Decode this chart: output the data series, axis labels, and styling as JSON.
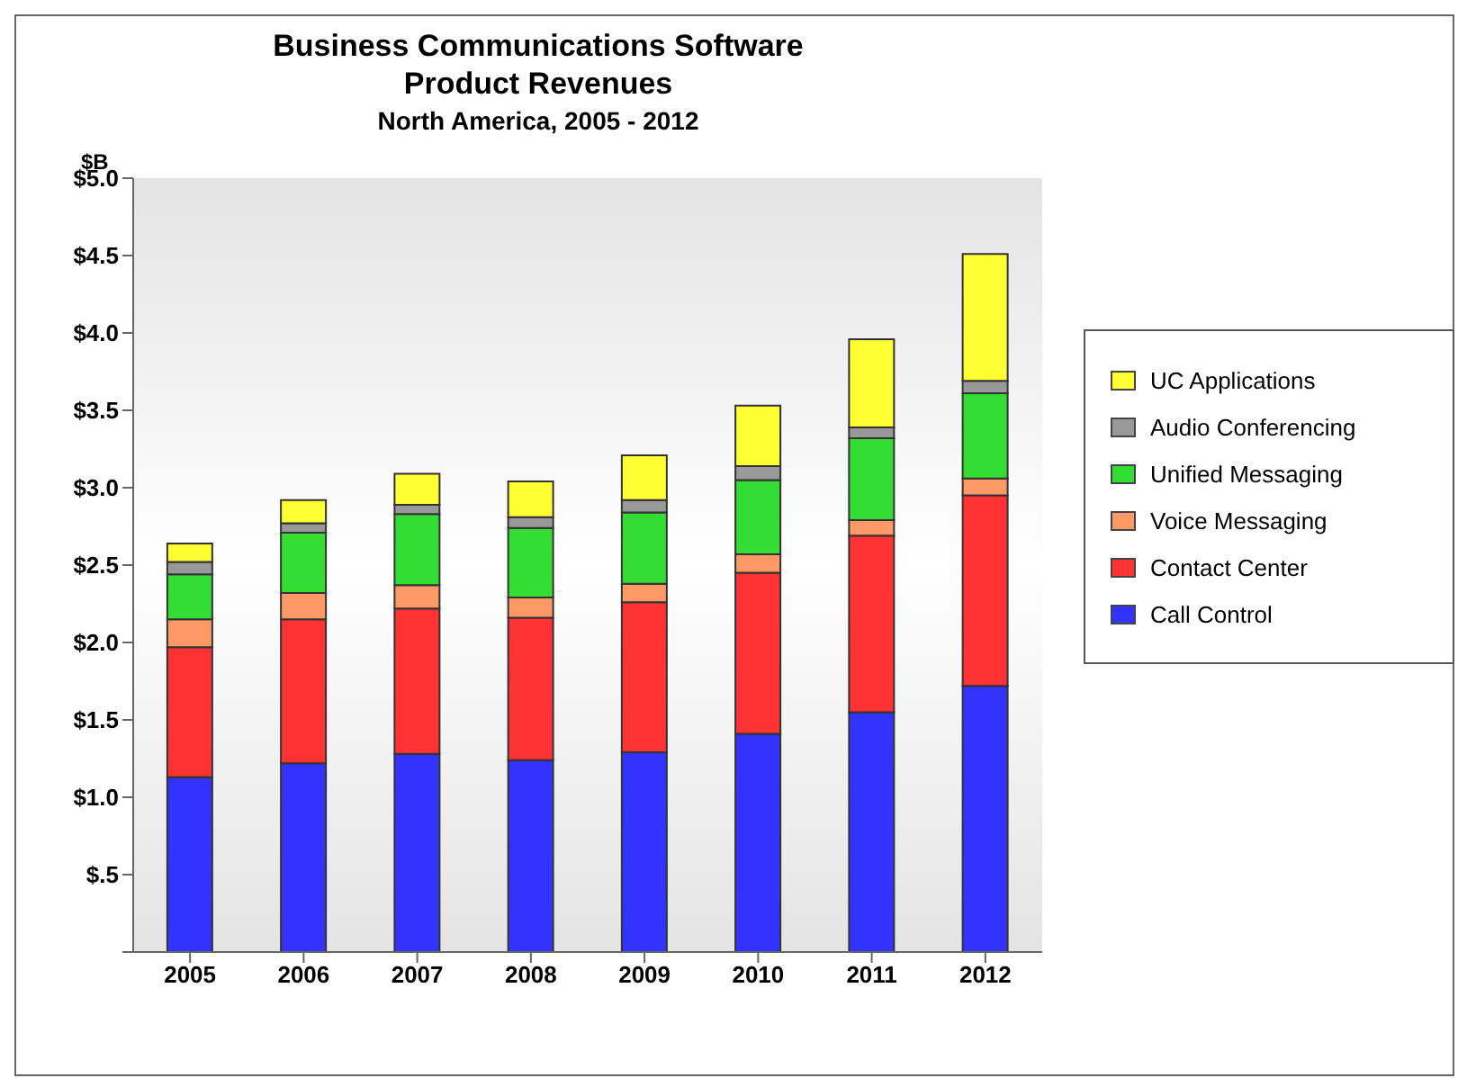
{
  "chart_data": {
    "type": "bar",
    "title": "Business Communications Software Product Revenues",
    "subtitle": "North America, 2005 - 2012",
    "ylabel": "$B",
    "categories": [
      "2005",
      "2006",
      "2007",
      "2008",
      "2009",
      "2010",
      "2011",
      "2012"
    ],
    "stacked": true,
    "legend": "right",
    "grid": false,
    "ylim": [
      0,
      5
    ],
    "yticks": [
      {
        "value": 0,
        "label": null
      },
      {
        "value": 0.5,
        "label": "$.5"
      },
      {
        "value": 1,
        "label": "$1.0"
      },
      {
        "value": 1.5,
        "label": "$1.5"
      },
      {
        "value": 2,
        "label": "$2.0"
      },
      {
        "value": 2.5,
        "label": "$2.5"
      },
      {
        "value": 3,
        "label": "$3.0"
      },
      {
        "value": 3.5,
        "label": "$3.5"
      },
      {
        "value": 4,
        "label": "$4.0"
      },
      {
        "value": 4.5,
        "label": "$4.5"
      },
      {
        "value": 5,
        "label": "$5.0"
      }
    ],
    "series": [
      {
        "name": "Call Control",
        "color": "#3333ff",
        "values": [
          1.13,
          1.22,
          1.28,
          1.24,
          1.29,
          1.41,
          1.55,
          1.72
        ]
      },
      {
        "name": "Contact Center",
        "color": "#ff3333",
        "values": [
          0.84,
          0.93,
          0.94,
          0.92,
          0.97,
          1.04,
          1.14,
          1.23
        ]
      },
      {
        "name": "Voice Messaging",
        "color": "#ff9966",
        "values": [
          0.18,
          0.17,
          0.15,
          0.13,
          0.12,
          0.12,
          0.1,
          0.11
        ]
      },
      {
        "name": "Unified Messaging",
        "color": "#33dd33",
        "values": [
          0.29,
          0.39,
          0.46,
          0.45,
          0.46,
          0.48,
          0.53,
          0.55
        ]
      },
      {
        "name": "Audio Conferencing",
        "color": "#999999",
        "values": [
          0.08,
          0.06,
          0.06,
          0.07,
          0.08,
          0.09,
          0.07,
          0.08
        ]
      },
      {
        "name": "UC Applications",
        "color": "#ffff33",
        "values": [
          0.12,
          0.15,
          0.2,
          0.23,
          0.29,
          0.39,
          0.57,
          0.82
        ]
      }
    ]
  }
}
